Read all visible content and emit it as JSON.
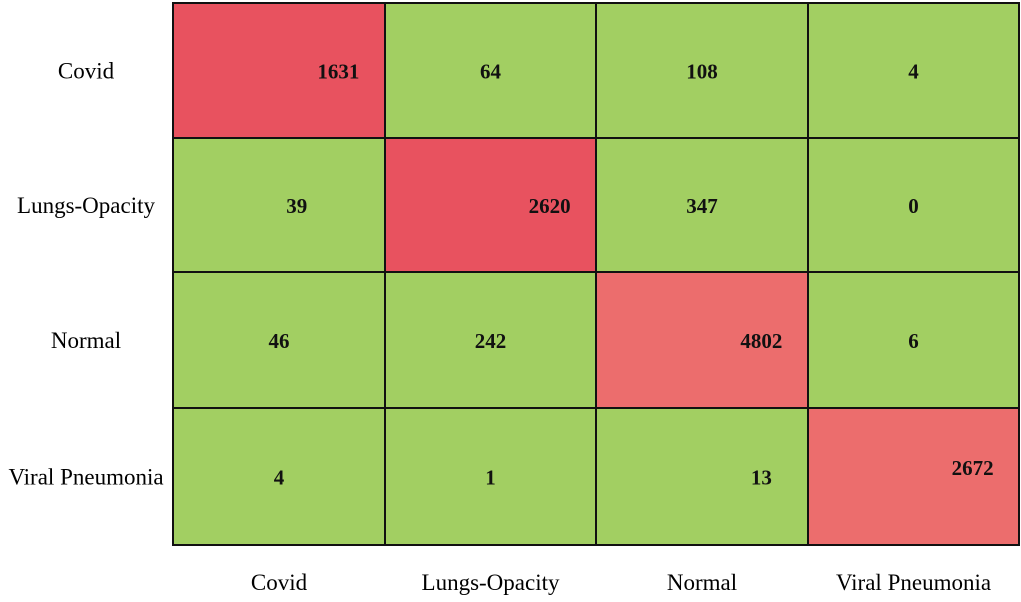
{
  "chart_data": {
    "type": "heatmap",
    "title": "",
    "xlabel": "",
    "ylabel": "",
    "row_labels": [
      "Covid",
      "Lungs-Opacity",
      "Normal",
      "Viral Pneumonia"
    ],
    "col_labels": [
      "Covid",
      "Lungs-Opacity",
      "Normal",
      "Viral Pneumonia"
    ],
    "values": [
      [
        1631,
        64,
        108,
        4
      ],
      [
        39,
        2620,
        347,
        0
      ],
      [
        46,
        242,
        4802,
        6
      ],
      [
        4,
        1,
        13,
        2672
      ]
    ],
    "colors": {
      "correct_strong": "#e8525f",
      "correct_light": "#ec6d6d",
      "incorrect": "#a2cf62",
      "border": "#111111"
    }
  }
}
